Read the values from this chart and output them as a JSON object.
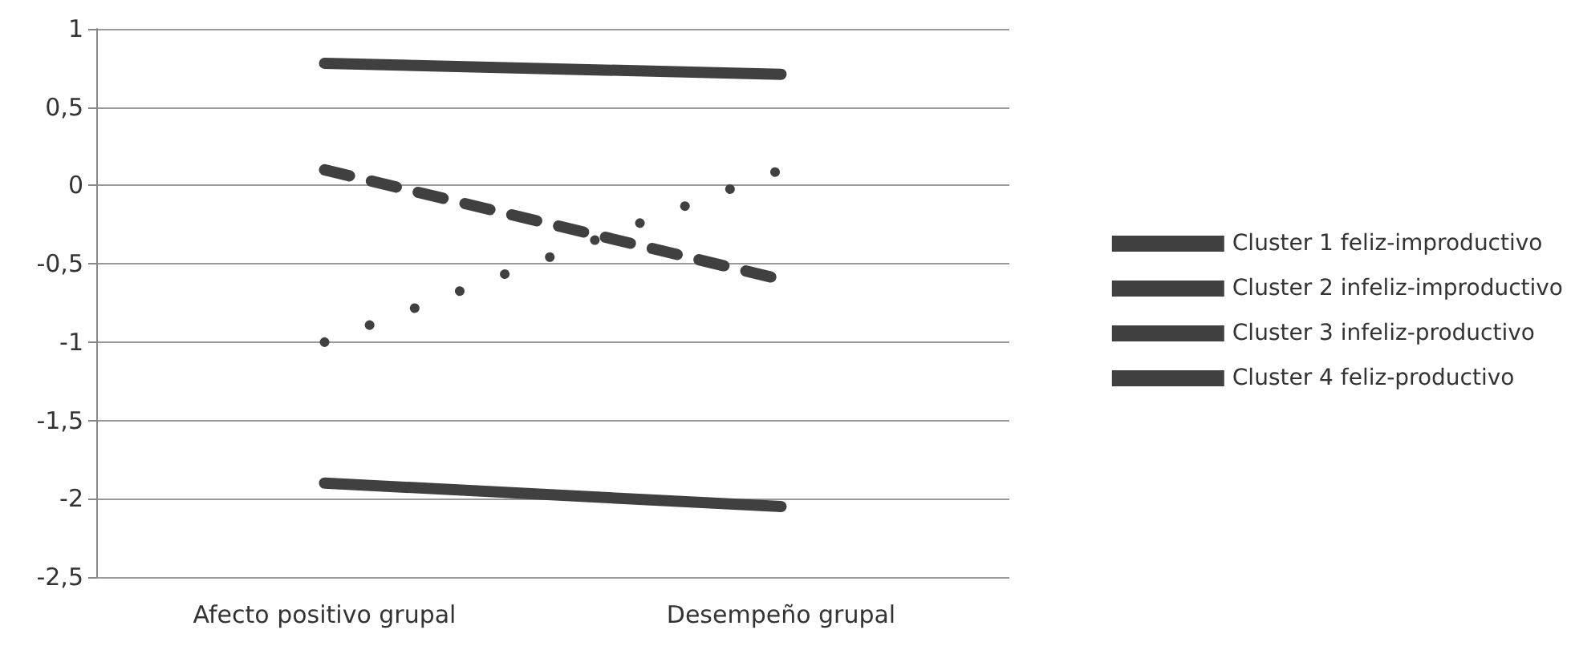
{
  "chart_data": {
    "type": "line",
    "categories": [
      "Afecto positivo grupal",
      "Desempeño grupal"
    ],
    "series": [
      {
        "name": "Cluster 1 feliz-improductivo",
        "color": "#404040",
        "values": [
          0.1,
          -0.6
        ],
        "line_style": "dashed"
      },
      {
        "name": "Cluster 2 infeliz-improductivo",
        "color": "#404040",
        "values": [
          -1.9,
          -2.05
        ],
        "line_style": "solid"
      },
      {
        "name": "Cluster 3 infeliz-productivo",
        "color": "#404040",
        "values": [
          -1.0,
          0.1
        ],
        "line_style": "dotted"
      },
      {
        "name": "Cluster 4 feliz-productivo",
        "color": "#404040",
        "values": [
          0.78,
          0.71
        ],
        "line_style": "solid"
      }
    ],
    "ylim": [
      -2.5,
      1
    ],
    "yticks": [
      {
        "value": -2.5,
        "label": "-2,5"
      },
      {
        "value": -2,
        "label": "-2"
      },
      {
        "value": -1.5,
        "label": "-1,5"
      },
      {
        "value": -1,
        "label": "-1"
      },
      {
        "value": -0.5,
        "label": "-0,5"
      },
      {
        "value": 0,
        "label": "0"
      },
      {
        "value": 0.5,
        "label": "0,5"
      },
      {
        "value": 1,
        "label": "1"
      }
    ],
    "grid": "y",
    "legend": "right",
    "marker": "none"
  }
}
